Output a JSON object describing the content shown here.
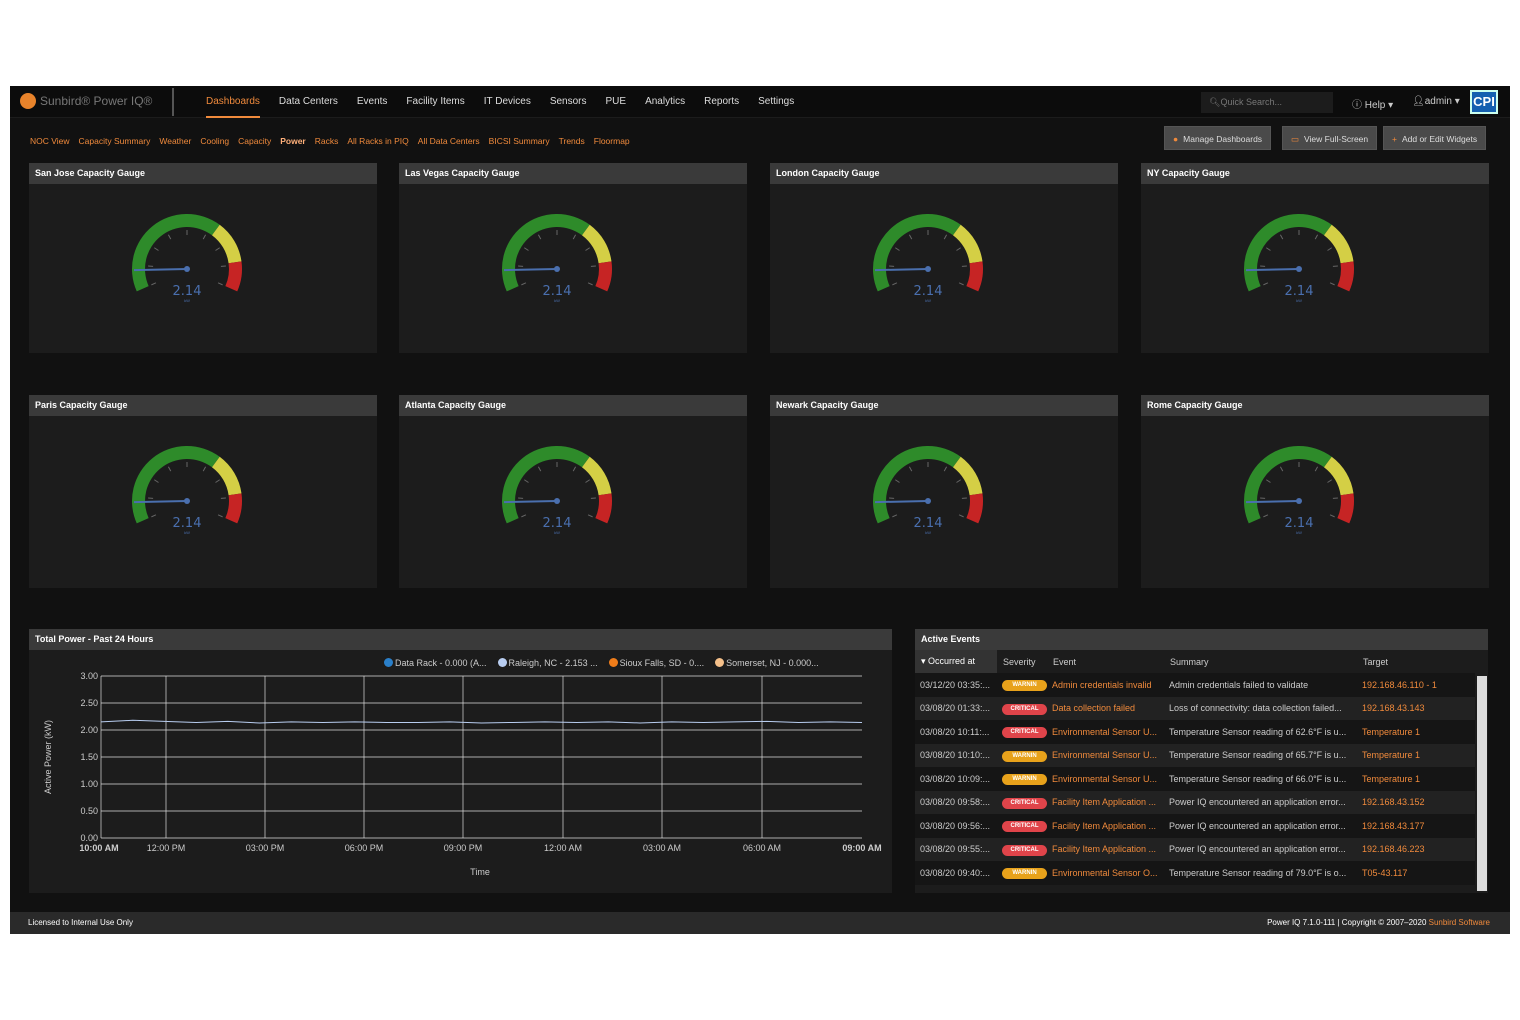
{
  "header": {
    "brand": "Sunbird® Power IQ®",
    "nav": [
      "Dashboards",
      "Data Centers",
      "Events",
      "Facility Items",
      "IT Devices",
      "Sensors",
      "PUE",
      "Analytics",
      "Reports",
      "Settings"
    ],
    "active_nav": "Dashboards",
    "search_placeholder": "Quick Search...",
    "help": "Help",
    "user": "admin",
    "logo_right": "CPI"
  },
  "subnav": {
    "items": [
      "NOC View",
      "Capacity Summary",
      "Weather",
      "Cooling",
      "Capacity",
      "Power",
      "Racks",
      "All Racks in PIQ",
      "All Data Centers",
      "BICSI Summary",
      "Trends",
      "Floormap"
    ],
    "active": "Power"
  },
  "toolbar": {
    "manage": "Manage Dashboards",
    "fullscreen": "View Full-Screen",
    "add": "Add or Edit Widgets"
  },
  "gauges": [
    {
      "title": "San Jose Capacity Gauge",
      "value": "2.14",
      "unit": "kW"
    },
    {
      "title": "Las Vegas Capacity Gauge",
      "value": "2.14",
      "unit": "kW"
    },
    {
      "title": "London Capacity Gauge",
      "value": "2.14",
      "unit": "kW"
    },
    {
      "title": "NY Capacity Gauge",
      "value": "2.14",
      "unit": "kW"
    },
    {
      "title": "Paris Capacity Gauge",
      "value": "2.14",
      "unit": "kW"
    },
    {
      "title": "Atlanta Capacity Gauge",
      "value": "2.14",
      "unit": "kW"
    },
    {
      "title": "Newark Capacity Gauge",
      "value": "2.14",
      "unit": "kW"
    },
    {
      "title": "Rome Capacity Gauge",
      "value": "2.14",
      "unit": "kW"
    }
  ],
  "gauge_colors": {
    "green": "#2e8b2a",
    "yellow": "#d4cf45",
    "red": "#c62424",
    "needle": "#4a6fae"
  },
  "chart_panel": {
    "title": "Total Power - Past 24 Hours"
  },
  "chart_data": {
    "type": "line",
    "xlabel": "Time",
    "ylabel": "Active Power (kW)",
    "ylim": [
      0,
      3
    ],
    "yticks": [
      "0.00",
      "0.50",
      "1.00",
      "1.50",
      "2.00",
      "2.50",
      "3.00"
    ],
    "xticks": [
      "10:00 AM",
      "12:00 PM",
      "03:00 PM",
      "06:00 PM",
      "09:00 PM",
      "12:00 AM",
      "03:00 AM",
      "06:00 AM",
      "09:00 AM"
    ],
    "grid": true,
    "legend_position": "top",
    "legend": [
      {
        "name": "Data Rack - 0.000 (A...",
        "color": "#2a7fc9"
      },
      {
        "name": "Raleigh, NC - 2.153 ...",
        "color": "#b8cdf0"
      },
      {
        "name": "Sioux Falls, SD - 0....",
        "color": "#f07d1a"
      },
      {
        "name": "Somerset, NJ - 0.000...",
        "color": "#f5c08a"
      }
    ],
    "series": [
      {
        "name": "Raleigh, NC - 2.153 ...",
        "color": "#b8cdf0",
        "values": [
          2.15,
          2.18,
          2.16,
          2.14,
          2.16,
          2.13,
          2.15,
          2.14,
          2.15,
          2.14,
          2.14,
          2.15,
          2.13,
          2.14,
          2.15,
          2.14,
          2.15,
          2.13,
          2.15,
          2.14,
          2.15,
          2.16,
          2.14,
          2.15,
          2.14
        ]
      }
    ]
  },
  "events": {
    "title": "Active Events",
    "columns": [
      "Occurred at",
      "Severity",
      "Event",
      "Summary",
      "Target"
    ],
    "rows": [
      [
        "03/12/20 03:35:...",
        "WARNIN",
        "Admin credentials invalid",
        "Admin credentials failed to validate",
        "192.168.46.110 - 1"
      ],
      [
        "03/08/20 01:33:...",
        "CRITICAL",
        "Data collection failed",
        "Loss of connectivity: data collection failed...",
        "192.168.43.143"
      ],
      [
        "03/08/20 10:11:...",
        "CRITICAL",
        "Environmental Sensor U...",
        "Temperature Sensor reading of 62.6°F is u...",
        "Temperature 1"
      ],
      [
        "03/08/20 10:10:...",
        "WARNIN",
        "Environmental Sensor U...",
        "Temperature Sensor reading of 65.7°F is u...",
        "Temperature 1"
      ],
      [
        "03/08/20 10:09:...",
        "WARNIN",
        "Environmental Sensor U...",
        "Temperature Sensor reading of 66.0°F is u...",
        "Temperature 1"
      ],
      [
        "03/08/20 09:58:...",
        "CRITICAL",
        "Facility Item Application ...",
        "Power IQ encountered an application error...",
        "192.168.43.152"
      ],
      [
        "03/08/20 09:56:...",
        "CRITICAL",
        "Facility Item Application ...",
        "Power IQ encountered an application error...",
        "192.168.43.177"
      ],
      [
        "03/08/20 09:55:...",
        "CRITICAL",
        "Facility Item Application ...",
        "Power IQ encountered an application error...",
        "192.168.46.223"
      ],
      [
        "03/08/20 09:40:...",
        "WARNIN",
        "Environmental Sensor O...",
        "Temperature Sensor reading of 79.0°F is o...",
        "T05-43.117"
      ]
    ],
    "severity_colors": {
      "WARNIN": "#e8a21b",
      "CRITICAL": "#e0444a"
    }
  },
  "footer": {
    "left": "Licensed to Internal Use Only",
    "right_prefix": "Power IQ 7.1.0-111 | Copyright © 2007–2020 ",
    "right_link": "Sunbird Software"
  }
}
